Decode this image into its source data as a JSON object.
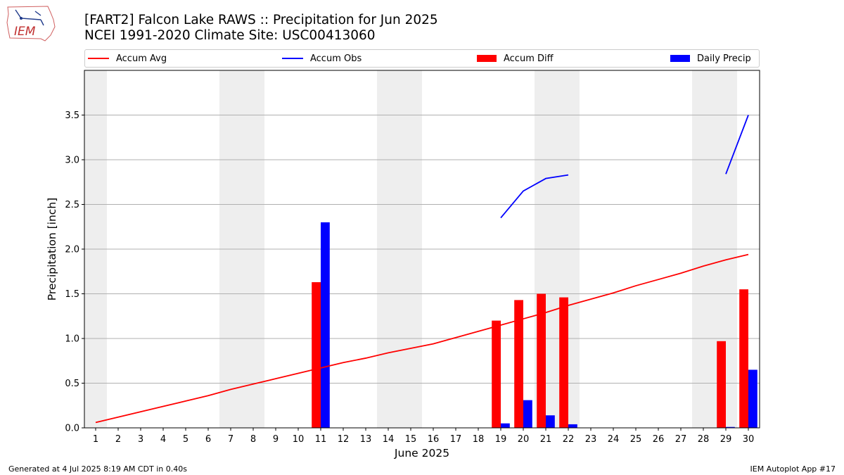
{
  "header": {
    "title_line1": "[FART2] Falcon Lake RAWS :: Precipitation for Jun 2025",
    "title_line2": "NCEI 1991-2020 Climate Site: USC00413060"
  },
  "logo": {
    "text": "IEM"
  },
  "footer": {
    "generated": "Generated at 4 Jul 2025 8:19 AM CDT in 0.40s",
    "app": "IEM Autoplot App #17"
  },
  "colors": {
    "avg": "#ff0000",
    "obs": "#0000ff",
    "diff": "#ff0000",
    "daily": "#0000ff",
    "weekend": "#eeeeee",
    "grid": "#b0b0b0"
  },
  "legend": [
    {
      "label": "Accum Avg",
      "kind": "line",
      "color": "#ff0000"
    },
    {
      "label": "Accum Obs",
      "kind": "line",
      "color": "#0000ff"
    },
    {
      "label": "Accum Diff",
      "kind": "patch",
      "color": "#ff0000"
    },
    {
      "label": "Daily Precip",
      "kind": "patch",
      "color": "#0000ff"
    }
  ],
  "chart_data": {
    "type": "bar",
    "title": "[FART2] Falcon Lake RAWS :: Precipitation for Jun 2025",
    "xlabel": "June 2025",
    "ylabel": "Precipitation [inch]",
    "xlim": [
      0.5,
      30.5
    ],
    "ylim": [
      0,
      4.0
    ],
    "yticks": [
      0.0,
      0.5,
      1.0,
      1.5,
      2.0,
      2.5,
      3.0,
      3.5
    ],
    "ytick_labels": [
      "0.0",
      "0.5",
      "1.0",
      "1.5",
      "2.0",
      "2.5",
      "3.0",
      "3.5"
    ],
    "grid": "y",
    "days": [
      1,
      2,
      3,
      4,
      5,
      6,
      7,
      8,
      9,
      10,
      11,
      12,
      13,
      14,
      15,
      16,
      17,
      18,
      19,
      20,
      21,
      22,
      23,
      24,
      25,
      26,
      27,
      28,
      29,
      30
    ],
    "day_labels": [
      "1",
      "2",
      "3",
      "4",
      "5",
      "6",
      "7",
      "8",
      "9",
      "10",
      "11",
      "12",
      "13",
      "14",
      "15",
      "16",
      "17",
      "18",
      "19",
      "20",
      "21",
      "22",
      "23",
      "24",
      "25",
      "26",
      "27",
      "28",
      "29",
      "30"
    ],
    "weekend_days": [
      1,
      7,
      8,
      14,
      15,
      21,
      22,
      28,
      29
    ],
    "series": [
      {
        "name": "Accum Avg",
        "type": "line",
        "values": [
          0.06,
          0.12,
          0.18,
          0.24,
          0.3,
          0.36,
          0.43,
          0.49,
          0.55,
          0.61,
          0.67,
          0.73,
          0.78,
          0.84,
          0.89,
          0.94,
          1.01,
          1.08,
          1.15,
          1.22,
          1.29,
          1.37,
          1.44,
          1.51,
          1.59,
          1.66,
          1.73,
          1.81,
          1.88,
          1.94
        ]
      },
      {
        "name": "Accum Obs",
        "type": "line",
        "segments": [
          {
            "days": [
              19,
              20,
              21,
              22
            ],
            "values": [
              2.35,
              2.65,
              2.79,
              2.83
            ]
          },
          {
            "days": [
              29,
              30
            ],
            "values": [
              2.84,
              3.5
            ]
          }
        ]
      },
      {
        "name": "Accum Diff",
        "type": "bar",
        "days": [
          11,
          19,
          20,
          21,
          22,
          29,
          30
        ],
        "values": [
          1.63,
          1.2,
          1.43,
          1.5,
          1.46,
          0.97,
          1.55
        ]
      },
      {
        "name": "Daily Precip",
        "type": "bar",
        "days": [
          11,
          19,
          20,
          21,
          22,
          29,
          30
        ],
        "values": [
          2.3,
          0.05,
          0.31,
          0.14,
          0.04,
          0.01,
          0.65
        ]
      }
    ]
  }
}
